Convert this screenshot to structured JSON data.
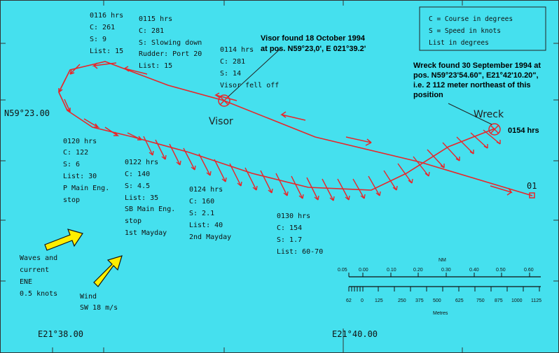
{
  "legend": {
    "lines": [
      "C = Course in degrees",
      "S = Speed in knots",
      "List in degrees"
    ]
  },
  "coordinates": {
    "lat_label": "N59°23.00",
    "lon_label_left": "E21°38.00",
    "lon_label_right": "E21°40.00"
  },
  "annotations": {
    "visor_found": [
      "Visor found 18 October 1994",
      "at pos. N59°23,0', E 021°39.2'"
    ],
    "wreck_found": [
      "Wreck found 30 September 1994 at",
      "pos. N59°23'54.60\", E21°42'10.20\",",
      "i.e.  2 112 meter northeast of this",
      "position"
    ],
    "visor_label": "Visor",
    "wreck_label": "Wreck",
    "wreck_time": "0154 hrs",
    "start_label": "01"
  },
  "track_notes": [
    {
      "id": "t0116",
      "lines": [
        "0116 hrs",
        "C: 261",
        "S: 9",
        "List: 15"
      ]
    },
    {
      "id": "t0115",
      "lines": [
        "0115 hrs",
        "C: 281",
        "S: Slowing down",
        "Rudder: Port 20",
        "List: 15"
      ]
    },
    {
      "id": "t0114",
      "lines": [
        "0114 hrs",
        "C: 281",
        "S: 14",
        "Visor fell off"
      ]
    },
    {
      "id": "t0120",
      "lines": [
        "0120 hrs",
        "C: 122",
        "S: 6",
        "List: 30",
        "P Main Eng.",
        "stop"
      ]
    },
    {
      "id": "t0122",
      "lines": [
        "0122 hrs",
        "C: 140",
        "S: 4.5",
        "List: 35",
        "SB Main Eng.",
        "stop",
        "1st Mayday"
      ]
    },
    {
      "id": "t0124",
      "lines": [
        "0124 hrs",
        "C: 160",
        "S: 2.1",
        "List: 40",
        "2nd Mayday"
      ]
    },
    {
      "id": "t0130",
      "lines": [
        "0130 hrs",
        "C: 154",
        "S: 1.7",
        "List: 60-70"
      ]
    }
  ],
  "environment": {
    "waves": [
      "Waves and",
      "current",
      "ENE",
      "0.5 knots"
    ],
    "wind": [
      "Wind",
      "SW 18 m/s"
    ]
  },
  "scale": {
    "nm_unit": "NM",
    "nm_ticks": [
      "0.05",
      "0.00",
      "0.10",
      "0.20",
      "0.30",
      "0.40",
      "0.50",
      "0.60"
    ],
    "m_unit": "Metres",
    "m_ticks": [
      "62",
      "0",
      "125",
      "250",
      "375",
      "500",
      "625",
      "750",
      "875",
      "1000",
      "1125"
    ]
  },
  "colors": {
    "sea": "#45e0ee",
    "track": "#e8262a",
    "arrow": "#ffee00"
  }
}
